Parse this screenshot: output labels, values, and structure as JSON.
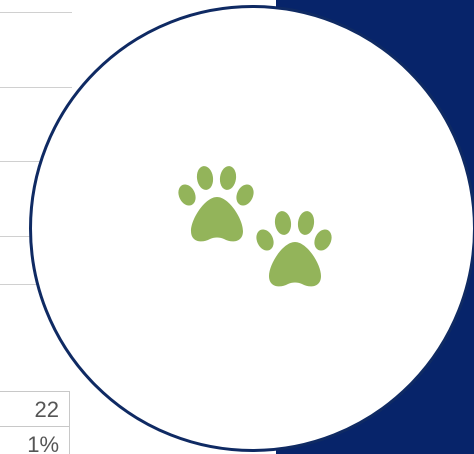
{
  "colors": {
    "navy": "#07246a",
    "circle_border": "#0f2a63",
    "paw_green": "#93b45a",
    "rule_gray": "#d0d0d0"
  },
  "table": {
    "cells": [
      {
        "text": "22"
      },
      {
        "text": "1%"
      }
    ]
  },
  "icons": {
    "paw_1": "paw-print-icon",
    "paw_2": "paw-print-icon"
  }
}
